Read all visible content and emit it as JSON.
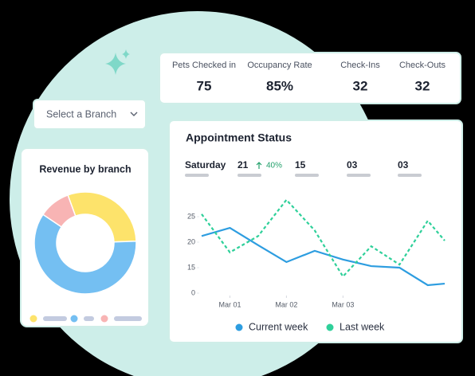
{
  "branch_select": "Select a Branch",
  "stats": [
    {
      "label": "Pets Checked in",
      "value": "75"
    },
    {
      "label": "Occupancy Rate",
      "value": "85%"
    },
    {
      "label": "Check-Ins",
      "value": "32"
    },
    {
      "label": "Check-Outs",
      "value": "32"
    }
  ],
  "appointment_summary": {
    "day": "Saturday",
    "change": "40%",
    "items": [
      "21",
      "15",
      "03",
      "03"
    ]
  },
  "chart_data": [
    {
      "type": "pie",
      "title": "Revenue by branch",
      "donut": true,
      "values": [
        30,
        60,
        10
      ],
      "colors": [
        "#fde36b",
        "#74bff2",
        "#f8b4b4"
      ]
    },
    {
      "type": "line",
      "title": "Appointment Status",
      "x": [
        0.5,
        1,
        1.5,
        2,
        2.5,
        3,
        3.5,
        4,
        4.5,
        4.8
      ],
      "xlim": [
        0.45,
        4.85
      ],
      "xticks": [
        {
          "value": 1,
          "label": "Mar 01"
        },
        {
          "value": 2,
          "label": "Mar 02"
        },
        {
          "value": 3,
          "label": "Mar 03"
        }
      ],
      "yticks": [
        0,
        15,
        20,
        25
      ],
      "series": [
        {
          "name": "Current week",
          "color": "#2d9de0",
          "dashed": false,
          "values": [
            21.2,
            22.8,
            19.4,
            16.1,
            18.3,
            16.6,
            15.3,
            15,
            4.7,
            5.6
          ]
        },
        {
          "name": "Last week",
          "color": "#2fd09a",
          "dashed": true,
          "values": [
            25.5,
            18,
            21.2,
            28.3,
            22.3,
            9.8,
            19.2,
            15.6,
            24.2,
            20.3
          ]
        }
      ]
    }
  ]
}
